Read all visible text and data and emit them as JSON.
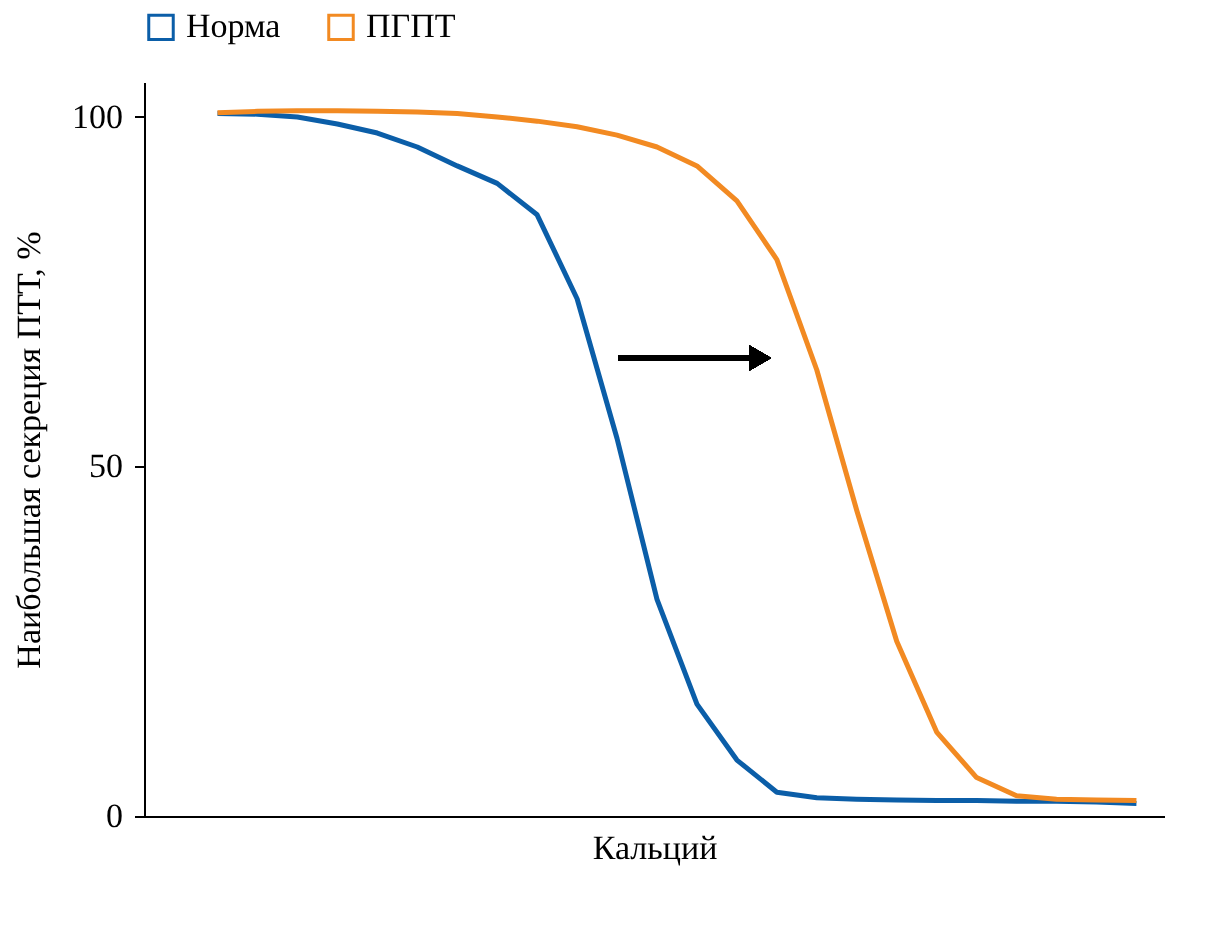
{
  "chart_data": {
    "type": "line",
    "xlabel": "Кальций",
    "ylabel": "Наибольшая секреция ПТТ, %",
    "categories": [
      null,
      null,
      null,
      null,
      null,
      null,
      null,
      null,
      null,
      null,
      null,
      null,
      null,
      null,
      null,
      null,
      null,
      null,
      null,
      null,
      null,
      null,
      null,
      null
    ],
    "series": [
      {
        "name": "Норма",
        "color": "#0b5ea8",
        "values": [
          100.5,
          100.4,
          100,
          99,
          97.7,
          95.7,
          93,
          90.5,
          86,
          74,
          54,
          31,
          16,
          8,
          3.4,
          2.6,
          2.4,
          2.3,
          2.2,
          2.2,
          2.1,
          2.1,
          2,
          1.8
        ]
      },
      {
        "name": "ПГПТ",
        "color": "#f28a22",
        "values": [
          100.6,
          100.8,
          100.9,
          100.9,
          100.8,
          100.7,
          100.5,
          100,
          99.4,
          98.6,
          97.4,
          95.7,
          93,
          88,
          79.6,
          63.8,
          43.7,
          25,
          12,
          5.5,
          2.9,
          2.4,
          2.3,
          2.2
        ]
      }
    ],
    "ylim": [
      0,
      105
    ],
    "yticks": [
      0,
      50,
      100
    ],
    "grid": false,
    "legend": "top",
    "tick_labels": "y",
    "marker": "none",
    "line_style": "solid"
  }
}
